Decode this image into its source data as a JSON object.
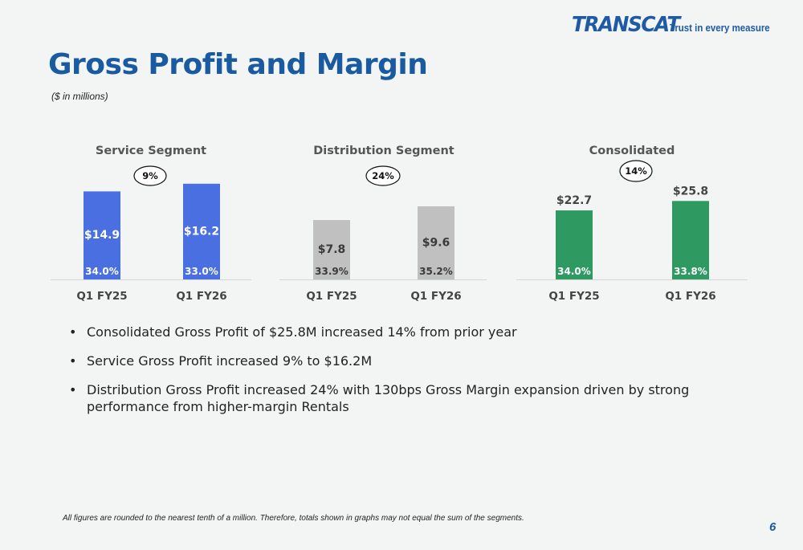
{
  "logo": {
    "wordmark": "TRANSCAT",
    "tagline": "Trust in every measure"
  },
  "title": "Gross Profit and Margin",
  "subtitle": "($ in millions)",
  "chart_data": [
    {
      "type": "bar",
      "title": "Service Segment",
      "categories": [
        "Q1 FY25",
        "Q1 FY26"
      ],
      "values": [
        14.9,
        16.2
      ],
      "value_labels": [
        "$14.9",
        "$16.2"
      ],
      "margin_labels": [
        "34.0%",
        "33.0%"
      ],
      "growth_label": "9%",
      "color": "#4a6fe0",
      "label_color": "#ffffff",
      "ylim": [
        0,
        17.4
      ]
    },
    {
      "type": "bar",
      "title": "Distribution Segment",
      "categories": [
        "Q1 FY25",
        "Q1 FY26"
      ],
      "values": [
        7.8,
        9.6
      ],
      "value_labels": [
        "$7.8",
        "$9.6"
      ],
      "margin_labels": [
        "33.9%",
        "35.2%"
      ],
      "growth_label": "24%",
      "color": "#c0c0c0",
      "label_color": "#3a3a3a",
      "ylim": [
        0,
        13.5
      ]
    },
    {
      "type": "bar",
      "title": "Consolidated",
      "categories": [
        "Q1 FY25",
        "Q1 FY26"
      ],
      "values": [
        22.7,
        25.8
      ],
      "value_labels": [
        "$22.7",
        "$25.8"
      ],
      "margin_labels": [
        "34.0%",
        "33.8%"
      ],
      "growth_label": "14%",
      "color": "#2e9a62",
      "label_color": "#ffffff",
      "ylim": [
        0,
        33.8
      ]
    }
  ],
  "bullets": [
    "Consolidated Gross Profit of $25.8M increased 14% from prior year",
    "Service Gross Profit increased 9% to $16.2M",
    "Distribution Gross Profit increased 24% with 130bps Gross Margin expansion driven by strong performance from higher-margin Rentals"
  ],
  "footnote": "All figures are rounded to the nearest tenth of a million. Therefore, totals shown in graphs may not equal the sum of the segments.",
  "page_number": "6"
}
